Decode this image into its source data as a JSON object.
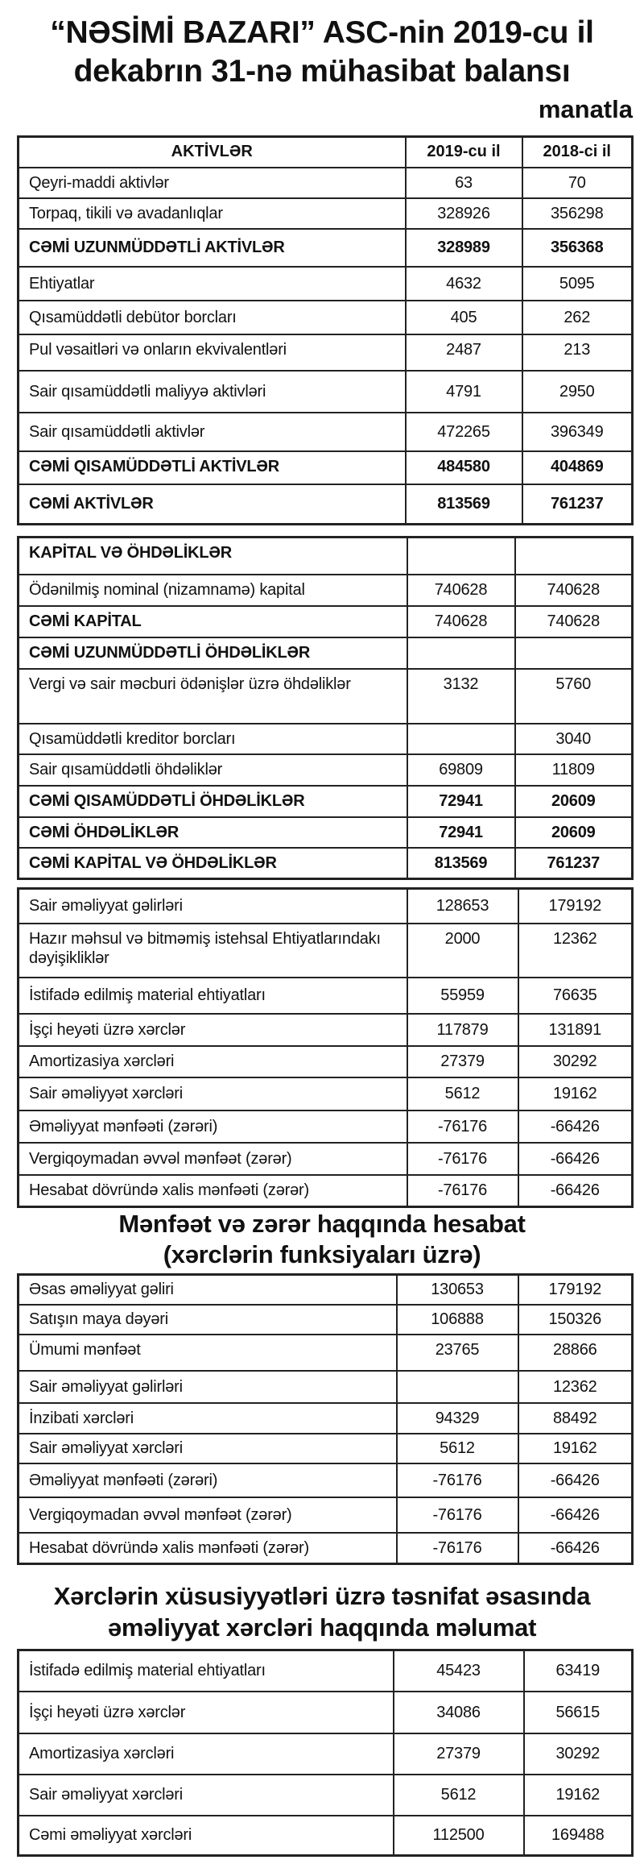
{
  "header": {
    "title_line1": "“NƏSİMİ BAZARI” ASC-nin 2019-cu il",
    "title_line2": "dekabrın 31-nə  mühasibat balansı",
    "unit": "manatla"
  },
  "assets": {
    "columns": [
      "AKTİVLƏR",
      "2019-cu il",
      "2018-ci il"
    ],
    "rows": [
      {
        "label": "Qeyri-maddi aktivlər",
        "v2019": "63",
        "v2018": "70"
      },
      {
        "label": "Torpaq, tikili və avadanlıqlar",
        "v2019": "328926",
        "v2018": "356298"
      },
      {
        "label": "CƏMİ UZUNMÜDDƏTLİ  AKTİVLƏR",
        "v2019": "328989",
        "v2018": "356368",
        "bold": true
      },
      {
        "label": "Ehtiyatlar",
        "v2019": "4632",
        "v2018": "5095"
      },
      {
        "label": "Qısamüddətli debütor borcları",
        "v2019": "405",
        "v2018": "262"
      },
      {
        "label": "Pul vəsaitləri və onların ekvivalentləri",
        "v2019": "2487",
        "v2018": "213",
        "top": true
      },
      {
        "label": "Sair qısamüddətli maliyyə aktivləri",
        "v2019": "4791",
        "v2018": "2950"
      },
      {
        "label": "Sair qısamüddətli aktivlər",
        "v2019": "472265",
        "v2018": "396349"
      },
      {
        "label": "CƏMİ QISAMÜDDƏTLİ AKTİVLƏR",
        "v2019": "484580",
        "v2018": "404869",
        "bold": true,
        "top": true
      },
      {
        "label": "CƏMİ AKTİVLƏR",
        "v2019": "813569",
        "v2018": "761237",
        "bold": true
      }
    ]
  },
  "equity_liabilities": {
    "rows": [
      {
        "label": "KAPİTAL VƏ ÖHDƏLİKLƏR",
        "v2019": "",
        "v2018": "",
        "bold": true,
        "top": true
      },
      {
        "label": "Ödənilmiş nominal (nizamnamə) kapital",
        "v2019": "740628",
        "v2018": "740628"
      },
      {
        "label": "CƏMİ KAPİTAL",
        "v2019": "740628",
        "v2018": "740628",
        "bold": true,
        "plainvals": true
      },
      {
        "label": "CƏMİ UZUNMÜDDƏTLİ ÖHDƏLİKLƏR",
        "v2019": "",
        "v2018": "",
        "bold": true
      },
      {
        "label": "Vergi və sair məcburi ödənişlər üzrə öhdəliklər",
        "v2019": "3132",
        "v2018": "5760",
        "top": true
      },
      {
        "label": "Qısamüddətli kreditor borcları",
        "v2019": "",
        "v2018": "3040"
      },
      {
        "label": "Sair qısamüddətli öhdəliklər",
        "v2019": "69809",
        "v2018": "11809"
      },
      {
        "label": "CƏMİ QISAMÜDDƏTLİ ÖHDƏLİKLƏR",
        "v2019": "72941",
        "v2018": "20609",
        "bold": true
      },
      {
        "label": "CƏMİ ÖHDƏLİKLƏR",
        "v2019": "72941",
        "v2018": "20609",
        "bold": true
      },
      {
        "label": "CƏMİ KAPİTAL VƏ ÖHDƏLİKLƏR",
        "v2019": "813569",
        "v2018": "761237",
        "bold": true
      }
    ]
  },
  "operations": {
    "rows": [
      {
        "label": "Sair əməliyyat gəlirləri",
        "v2019": "128653",
        "v2018": "179192"
      },
      {
        "label": "Hazır məhsul və bitməmiş istehsal Ehtiyatlarındakı dəyişikliklər",
        "v2019": "2000",
        "v2018": "12362",
        "top": true
      },
      {
        "label": "İstifadə edilmiş material ehtiyatları",
        "v2019": "55959",
        "v2018": "76635"
      },
      {
        "label": "İşçi heyəti üzrə xərclər",
        "v2019": "117879",
        "v2018": "131891"
      },
      {
        "label": "Amortizasiya xərcləri",
        "v2019": "27379",
        "v2018": "30292"
      },
      {
        "label": "Sair əməliyyət xərcləri",
        "v2019": "5612",
        "v2018": "19162"
      },
      {
        "label": "Əməliyyat mənfəəti (zərəri)",
        "v2019": "-76176",
        "v2018": "-66426"
      },
      {
        "label": "Vergiqoymadan əvvəl mənfəət (zərər)",
        "v2019": "-76176",
        "v2018": "-66426"
      },
      {
        "label": "Hesabat dövründə xalis mənfəəti (zərər)",
        "v2019": "-76176",
        "v2018": "-66426"
      }
    ]
  },
  "income_statement": {
    "title_line1": "Mənfəət və zərər haqqında hesabat",
    "title_line2": "(xərclərin funksiyaları üzrə)",
    "rows": [
      {
        "label": "Əsas əməliyyat gəliri",
        "v2019": "130653",
        "v2018": "179192"
      },
      {
        "label": "Satışın maya dəyəri",
        "v2019": "106888",
        "v2018": "150326"
      },
      {
        "label": "Ümumi mənfəət",
        "v2019": "23765",
        "v2018": "28866",
        "top": true
      },
      {
        "label": "Sair əməliyyat gəlirləri",
        "v2019": "",
        "v2018": "12362"
      },
      {
        "label": "İnzibati xərcləri",
        "v2019": "94329",
        "v2018": "88492"
      },
      {
        "label": "Sair əməliyyat xərcləri",
        "v2019": "5612",
        "v2018": "19162"
      },
      {
        "label": "Əməliyyat mənfəəti (zərəri)",
        "v2019": "-76176",
        "v2018": "-66426"
      },
      {
        "label": "Vergiqoymadan əvvəl mənfəət (zərər)",
        "v2019": "-76176",
        "v2018": "-66426"
      },
      {
        "label": "Hesabat dövründə xalis mənfəəti (zərər)",
        "v2019": "-76176",
        "v2018": "-66426"
      }
    ]
  },
  "expenses_by_nature": {
    "title_line1": "Xərclərin xüsusiyyətləri üzrə təsnifat əsasında",
    "title_line2": "əməliyyat xərcləri haqqında məlumat",
    "rows": [
      {
        "label": "İstifadə edilmiş material ehtiyatları",
        "v2019": "45423",
        "v2018": "63419"
      },
      {
        "label": "İşçi heyəti üzrə xərclər",
        "v2019": "34086",
        "v2018": "56615"
      },
      {
        "label": "Amortizasiya xərcləri",
        "v2019": "27379",
        "v2018": "30292"
      },
      {
        "label": "Sair əməliyyat xərcləri",
        "v2019": "5612",
        "v2018": "19162"
      },
      {
        "label": "Cəmi əməliyyat xərcləri",
        "v2019": "112500",
        "v2018": "169488"
      }
    ]
  }
}
